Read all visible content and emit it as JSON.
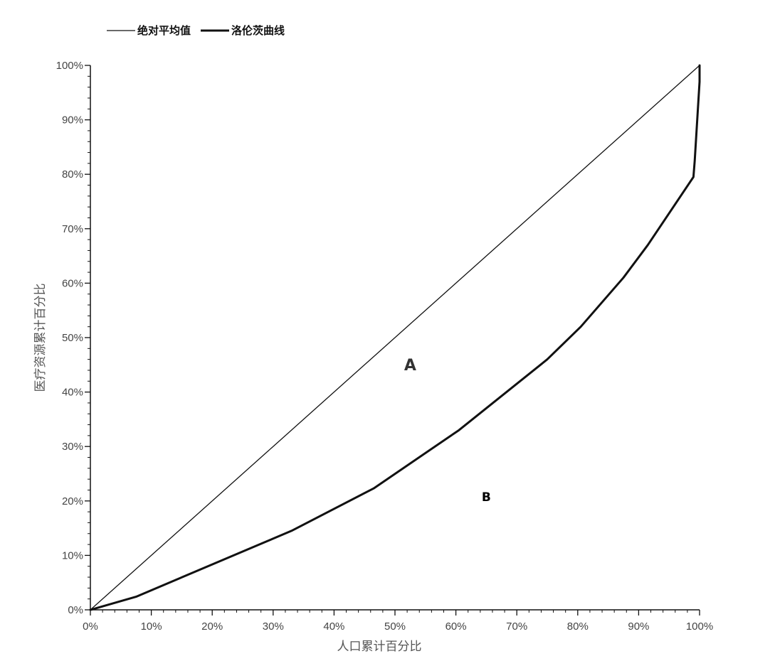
{
  "chart_data": {
    "type": "line",
    "xlabel": "人口累计百分比",
    "ylabel": "医疗资源累计百分比",
    "xlim": [
      0,
      100
    ],
    "ylim": [
      0,
      100
    ],
    "x_ticks": [
      "0%",
      "10%",
      "20%",
      "30%",
      "40%",
      "50%",
      "60%",
      "70%",
      "80%",
      "90%",
      "100%"
    ],
    "y_ticks": [
      "0%",
      "10%",
      "20%",
      "30%",
      "40%",
      "50%",
      "60%",
      "70%",
      "80%",
      "90%",
      "100%"
    ],
    "grid": false,
    "legend_position": "top-left",
    "series": [
      {
        "name": "绝对平均值",
        "color": "#111111",
        "line_style": "thin",
        "x": [
          0,
          100
        ],
        "y": [
          0,
          100
        ]
      },
      {
        "name": "洛伦茨曲线",
        "color": "#111111",
        "line_style": "thick",
        "x": [
          0,
          7.5,
          33,
          46.5,
          60.5,
          75,
          80.5,
          87.5,
          91.5,
          99,
          99.2,
          100,
          100
        ],
        "y": [
          0,
          2.4,
          14.5,
          22.3,
          33,
          46,
          52,
          61,
          67,
          79.5,
          82.5,
          97,
          100
        ]
      }
    ],
    "annotations": [
      {
        "text": "A",
        "x": 52.5,
        "y": 44
      },
      {
        "text": "B",
        "x": 65,
        "y": 20
      }
    ]
  }
}
